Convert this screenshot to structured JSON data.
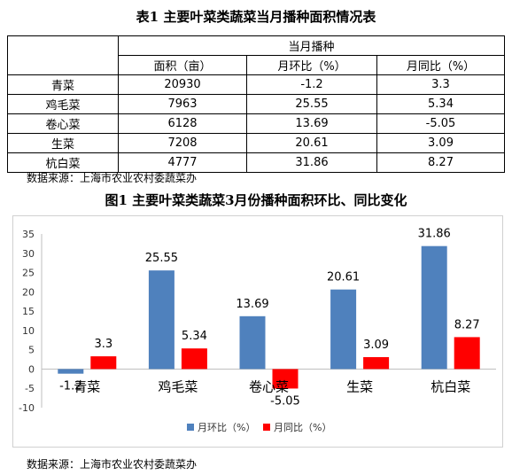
{
  "table": {
    "title": "表1 主要叶菜类蔬菜当月播种面积情况表",
    "group_header": "当月播种",
    "columns": [
      "面积（亩）",
      "月环比（%）",
      "月同比（%）"
    ],
    "rows": [
      {
        "name": "青菜",
        "cells": [
          "20930",
          "-1.2",
          "3.3"
        ]
      },
      {
        "name": "鸡毛菜",
        "cells": [
          "7963",
          "25.55",
          "5.34"
        ]
      },
      {
        "name": "卷心菜",
        "cells": [
          "6128",
          "13.69",
          "-5.05"
        ]
      },
      {
        "name": "生菜",
        "cells": [
          "7208",
          "20.61",
          "3.09"
        ]
      },
      {
        "name": "杭白菜",
        "cells": [
          "4777",
          "31.86",
          "8.27"
        ]
      }
    ],
    "source": "数据来源：上海市农业农村委蔬菜办"
  },
  "figure": {
    "title": "图1 主要叶菜类蔬菜3月份播种面积环比、同比变化",
    "source": "数据来源：上海市农业农村委蔬菜办"
  },
  "chart_data": {
    "type": "bar",
    "categories": [
      "青菜",
      "鸡毛菜",
      "卷心菜",
      "生菜",
      "杭白菜"
    ],
    "series": [
      {
        "name": "月环比（%）",
        "values": [
          -1.2,
          25.55,
          13.69,
          20.61,
          31.86
        ],
        "labels": [
          "-1.2",
          "25.55",
          "13.69",
          "20.61",
          "31.86"
        ],
        "color": "#4f81bd"
      },
      {
        "name": "月同比（%）",
        "values": [
          3.3,
          5.34,
          -5.05,
          3.09,
          8.27
        ],
        "labels": [
          "3.3",
          "5.34",
          "-5.05",
          "3.09",
          "8.27"
        ],
        "color": "#ff0000"
      }
    ],
    "yticks": [
      35,
      30,
      25,
      20,
      15,
      10,
      5,
      0,
      -5,
      -10
    ],
    "ylim": [
      -10,
      35
    ],
    "grid": false,
    "legend": "bottom"
  }
}
